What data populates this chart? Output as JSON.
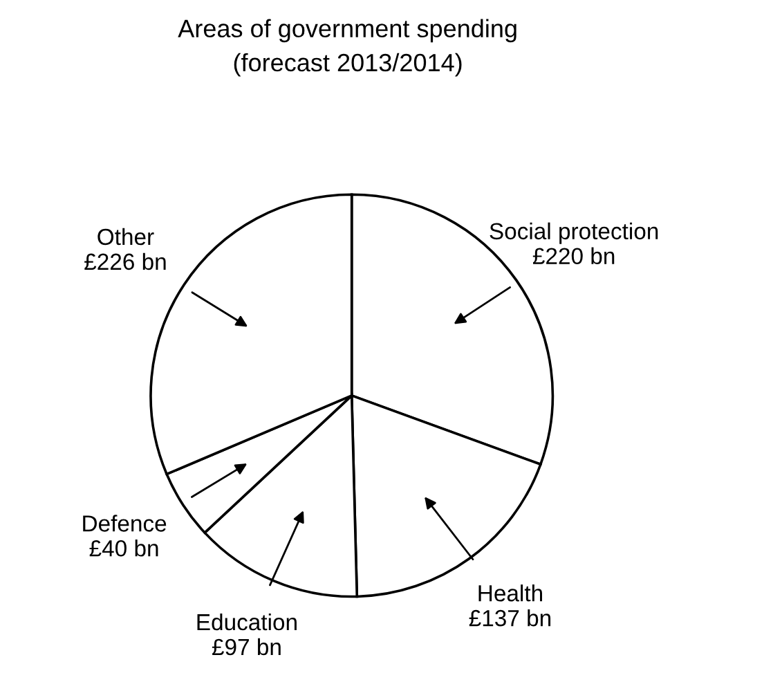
{
  "chart_data": {
    "type": "pie",
    "title": "Areas of government spending",
    "subtitle": "(forecast 2013/2014)",
    "categories": [
      "Social protection",
      "Health",
      "Education",
      "Defence",
      "Other"
    ],
    "values": [
      220,
      137,
      97,
      40,
      226
    ],
    "value_labels": [
      "£220 bn",
      "£137 bn",
      "£97 bn",
      "£40 bn",
      "£226 bn"
    ],
    "colors": [
      "#ffffff",
      "#ffffff",
      "#ffffff",
      "#ffffff",
      "#ffffff"
    ],
    "legend": false
  }
}
